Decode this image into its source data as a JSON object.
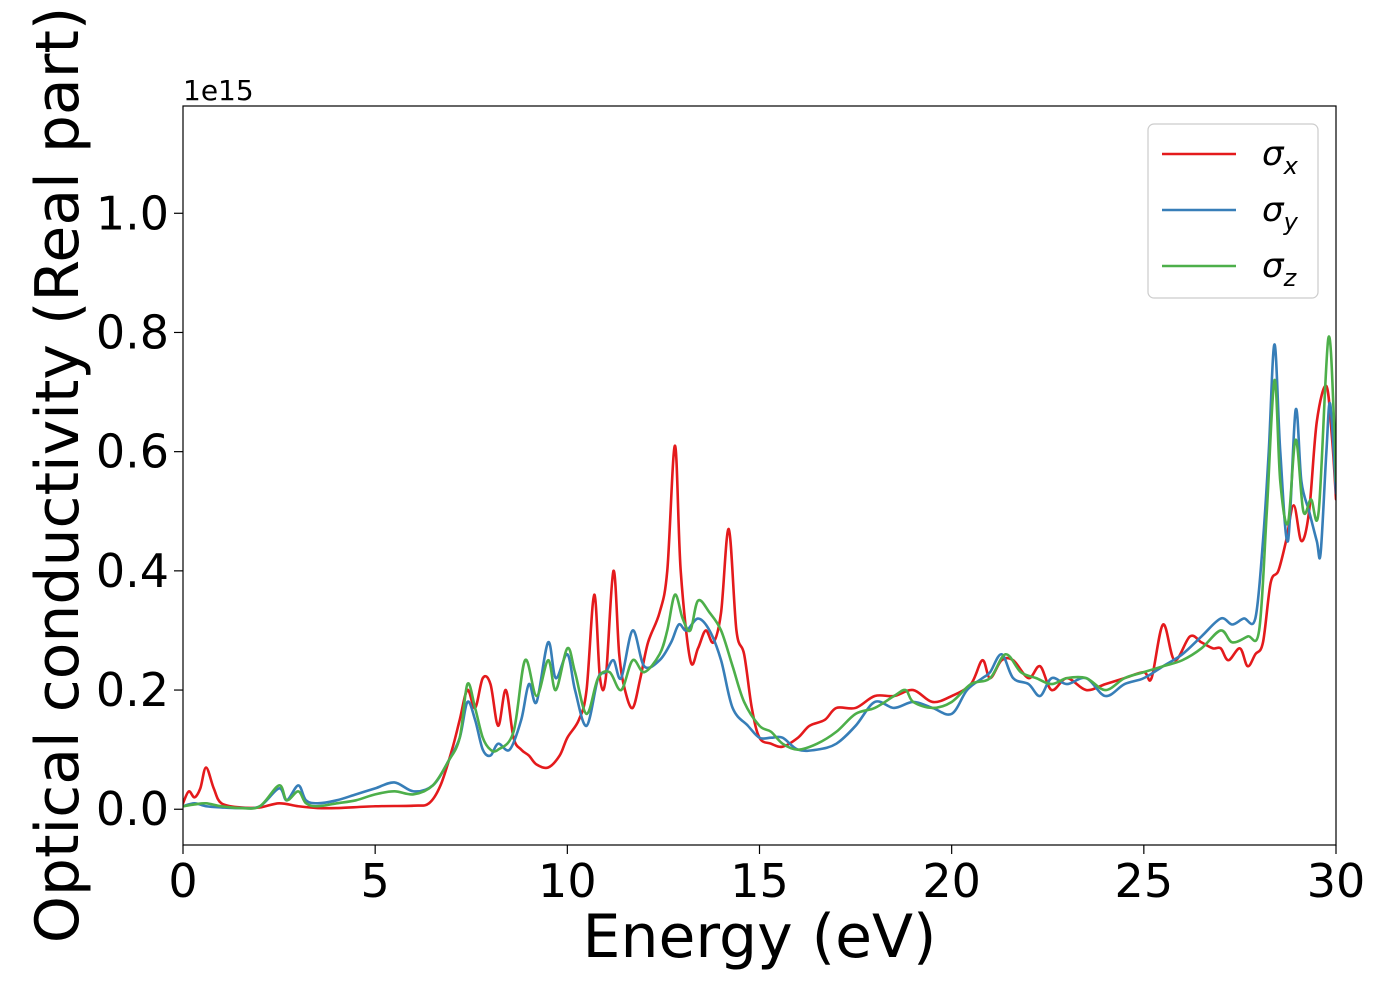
{
  "chart_data": {
    "type": "line",
    "xlabel": "Energy (eV)",
    "ylabel": "Optical conductivity (Real part)",
    "y_offset_label": "1e15",
    "xlim": [
      0,
      30
    ],
    "ylim": [
      -0.06,
      1.18
    ],
    "x_ticks": [
      0,
      5,
      10,
      15,
      20,
      25,
      30
    ],
    "x_tick_labels": [
      "0",
      "5",
      "10",
      "15",
      "20",
      "25",
      "30"
    ],
    "y_ticks": [
      0.0,
      0.2,
      0.4,
      0.6,
      0.8,
      1.0
    ],
    "y_tick_labels": [
      "0.0",
      "0.2",
      "0.4",
      "0.6",
      "0.8",
      "1.0"
    ],
    "grid": false,
    "legend_position": "top-right",
    "series": [
      {
        "name": "σx",
        "legend_symbol": "σ",
        "legend_subscript": "x",
        "color": "#e41a1c",
        "points": [
          [
            0,
            0.01
          ],
          [
            0.15,
            0.03
          ],
          [
            0.3,
            0.02
          ],
          [
            0.45,
            0.035
          ],
          [
            0.6,
            0.07
          ],
          [
            0.8,
            0.035
          ],
          [
            1.0,
            0.01
          ],
          [
            1.5,
            0.003
          ],
          [
            2.0,
            0.003
          ],
          [
            2.5,
            0.01
          ],
          [
            3.0,
            0.005
          ],
          [
            3.5,
            0.002
          ],
          [
            4.0,
            0.002
          ],
          [
            5.0,
            0.005
          ],
          [
            6.0,
            0.006
          ],
          [
            6.4,
            0.01
          ],
          [
            6.7,
            0.04
          ],
          [
            7.0,
            0.1
          ],
          [
            7.2,
            0.15
          ],
          [
            7.4,
            0.2
          ],
          [
            7.6,
            0.17
          ],
          [
            7.8,
            0.22
          ],
          [
            8.0,
            0.21
          ],
          [
            8.2,
            0.14
          ],
          [
            8.4,
            0.2
          ],
          [
            8.6,
            0.12
          ],
          [
            8.8,
            0.1
          ],
          [
            9.0,
            0.09
          ],
          [
            9.2,
            0.075
          ],
          [
            9.5,
            0.07
          ],
          [
            9.8,
            0.09
          ],
          [
            10.0,
            0.12
          ],
          [
            10.3,
            0.15
          ],
          [
            10.5,
            0.2
          ],
          [
            10.7,
            0.36
          ],
          [
            10.85,
            0.22
          ],
          [
            11.0,
            0.22
          ],
          [
            11.2,
            0.4
          ],
          [
            11.35,
            0.26
          ],
          [
            11.5,
            0.2
          ],
          [
            11.7,
            0.17
          ],
          [
            11.9,
            0.22
          ],
          [
            12.1,
            0.28
          ],
          [
            12.4,
            0.33
          ],
          [
            12.6,
            0.4
          ],
          [
            12.8,
            0.61
          ],
          [
            12.95,
            0.4
          ],
          [
            13.2,
            0.25
          ],
          [
            13.4,
            0.27
          ],
          [
            13.6,
            0.3
          ],
          [
            13.8,
            0.28
          ],
          [
            14.0,
            0.33
          ],
          [
            14.2,
            0.47
          ],
          [
            14.4,
            0.3
          ],
          [
            14.6,
            0.26
          ],
          [
            14.8,
            0.17
          ],
          [
            15.0,
            0.12
          ],
          [
            15.3,
            0.11
          ],
          [
            15.6,
            0.105
          ],
          [
            16.0,
            0.12
          ],
          [
            16.3,
            0.14
          ],
          [
            16.7,
            0.15
          ],
          [
            17.0,
            0.17
          ],
          [
            17.5,
            0.17
          ],
          [
            18.0,
            0.19
          ],
          [
            18.5,
            0.19
          ],
          [
            19.0,
            0.2
          ],
          [
            19.5,
            0.18
          ],
          [
            20.0,
            0.19
          ],
          [
            20.5,
            0.21
          ],
          [
            20.8,
            0.25
          ],
          [
            21.0,
            0.22
          ],
          [
            21.3,
            0.25
          ],
          [
            21.6,
            0.25
          ],
          [
            22.0,
            0.22
          ],
          [
            22.3,
            0.24
          ],
          [
            22.6,
            0.2
          ],
          [
            23.0,
            0.22
          ],
          [
            23.5,
            0.2
          ],
          [
            24.0,
            0.21
          ],
          [
            24.5,
            0.22
          ],
          [
            25.0,
            0.23
          ],
          [
            25.2,
            0.22
          ],
          [
            25.5,
            0.31
          ],
          [
            25.8,
            0.25
          ],
          [
            26.2,
            0.29
          ],
          [
            26.5,
            0.28
          ],
          [
            26.8,
            0.27
          ],
          [
            27.0,
            0.27
          ],
          [
            27.2,
            0.25
          ],
          [
            27.5,
            0.27
          ],
          [
            27.7,
            0.24
          ],
          [
            27.9,
            0.26
          ],
          [
            28.1,
            0.28
          ],
          [
            28.3,
            0.38
          ],
          [
            28.5,
            0.4
          ],
          [
            28.7,
            0.45
          ],
          [
            28.9,
            0.51
          ],
          [
            29.1,
            0.45
          ],
          [
            29.3,
            0.5
          ],
          [
            29.5,
            0.65
          ],
          [
            29.75,
            0.71
          ],
          [
            29.9,
            0.62
          ],
          [
            30.0,
            0.52
          ]
        ]
      },
      {
        "name": "σy",
        "legend_symbol": "σ",
        "legend_subscript": "y",
        "color": "#377eb8",
        "points": [
          [
            0,
            0.005
          ],
          [
            0.3,
            0.01
          ],
          [
            0.6,
            0.005
          ],
          [
            1.0,
            0.003
          ],
          [
            1.5,
            0.002
          ],
          [
            2.0,
            0.005
          ],
          [
            2.5,
            0.035
          ],
          [
            2.7,
            0.015
          ],
          [
            3.0,
            0.04
          ],
          [
            3.2,
            0.015
          ],
          [
            3.5,
            0.01
          ],
          [
            4.0,
            0.015
          ],
          [
            4.5,
            0.025
          ],
          [
            5.0,
            0.035
          ],
          [
            5.5,
            0.045
          ],
          [
            6.0,
            0.03
          ],
          [
            6.5,
            0.04
          ],
          [
            6.9,
            0.08
          ],
          [
            7.2,
            0.12
          ],
          [
            7.4,
            0.18
          ],
          [
            7.6,
            0.15
          ],
          [
            7.8,
            0.1
          ],
          [
            8.0,
            0.09
          ],
          [
            8.2,
            0.11
          ],
          [
            8.5,
            0.1
          ],
          [
            8.8,
            0.15
          ],
          [
            9.0,
            0.21
          ],
          [
            9.2,
            0.18
          ],
          [
            9.5,
            0.28
          ],
          [
            9.7,
            0.22
          ],
          [
            10.0,
            0.26
          ],
          [
            10.2,
            0.2
          ],
          [
            10.5,
            0.14
          ],
          [
            10.8,
            0.22
          ],
          [
            11.0,
            0.23
          ],
          [
            11.2,
            0.25
          ],
          [
            11.4,
            0.22
          ],
          [
            11.7,
            0.3
          ],
          [
            12.0,
            0.24
          ],
          [
            12.4,
            0.25
          ],
          [
            12.7,
            0.28
          ],
          [
            12.9,
            0.31
          ],
          [
            13.1,
            0.3
          ],
          [
            13.4,
            0.32
          ],
          [
            13.7,
            0.3
          ],
          [
            14.0,
            0.25
          ],
          [
            14.3,
            0.17
          ],
          [
            14.7,
            0.14
          ],
          [
            15.0,
            0.12
          ],
          [
            15.3,
            0.12
          ],
          [
            15.6,
            0.12
          ],
          [
            16.0,
            0.1
          ],
          [
            16.5,
            0.1
          ],
          [
            17.0,
            0.11
          ],
          [
            17.5,
            0.14
          ],
          [
            18.0,
            0.18
          ],
          [
            18.5,
            0.17
          ],
          [
            19.0,
            0.18
          ],
          [
            19.5,
            0.17
          ],
          [
            20.0,
            0.16
          ],
          [
            20.4,
            0.2
          ],
          [
            20.8,
            0.22
          ],
          [
            21.0,
            0.23
          ],
          [
            21.3,
            0.26
          ],
          [
            21.6,
            0.22
          ],
          [
            22.0,
            0.21
          ],
          [
            22.3,
            0.19
          ],
          [
            22.6,
            0.22
          ],
          [
            23.0,
            0.21
          ],
          [
            23.5,
            0.22
          ],
          [
            24.0,
            0.19
          ],
          [
            24.5,
            0.21
          ],
          [
            25.0,
            0.22
          ],
          [
            25.5,
            0.24
          ],
          [
            26.0,
            0.26
          ],
          [
            26.5,
            0.29
          ],
          [
            27.0,
            0.32
          ],
          [
            27.3,
            0.31
          ],
          [
            27.6,
            0.32
          ],
          [
            27.9,
            0.32
          ],
          [
            28.1,
            0.45
          ],
          [
            28.25,
            0.6
          ],
          [
            28.4,
            0.78
          ],
          [
            28.55,
            0.6
          ],
          [
            28.75,
            0.45
          ],
          [
            28.95,
            0.67
          ],
          [
            29.1,
            0.55
          ],
          [
            29.3,
            0.5
          ],
          [
            29.5,
            0.45
          ],
          [
            29.6,
            0.43
          ],
          [
            29.75,
            0.6
          ],
          [
            29.85,
            0.68
          ],
          [
            30.0,
            0.53
          ]
        ]
      },
      {
        "name": "σz",
        "legend_symbol": "σ",
        "legend_subscript": "z",
        "color": "#4daf4a",
        "points": [
          [
            0,
            0.005
          ],
          [
            0.3,
            0.008
          ],
          [
            0.6,
            0.01
          ],
          [
            1.0,
            0.005
          ],
          [
            1.5,
            0.002
          ],
          [
            2.0,
            0.005
          ],
          [
            2.5,
            0.04
          ],
          [
            2.7,
            0.015
          ],
          [
            3.0,
            0.03
          ],
          [
            3.2,
            0.01
          ],
          [
            3.5,
            0.005
          ],
          [
            4.0,
            0.01
          ],
          [
            4.5,
            0.015
          ],
          [
            5.0,
            0.025
          ],
          [
            5.5,
            0.03
          ],
          [
            6.0,
            0.025
          ],
          [
            6.5,
            0.04
          ],
          [
            6.9,
            0.08
          ],
          [
            7.2,
            0.12
          ],
          [
            7.4,
            0.21
          ],
          [
            7.6,
            0.17
          ],
          [
            7.8,
            0.12
          ],
          [
            8.0,
            0.1
          ],
          [
            8.2,
            0.1
          ],
          [
            8.6,
            0.13
          ],
          [
            8.9,
            0.25
          ],
          [
            9.2,
            0.19
          ],
          [
            9.5,
            0.25
          ],
          [
            9.7,
            0.2
          ],
          [
            10.0,
            0.27
          ],
          [
            10.2,
            0.23
          ],
          [
            10.5,
            0.16
          ],
          [
            10.8,
            0.22
          ],
          [
            11.1,
            0.23
          ],
          [
            11.4,
            0.2
          ],
          [
            11.7,
            0.25
          ],
          [
            12.0,
            0.23
          ],
          [
            12.4,
            0.26
          ],
          [
            12.6,
            0.3
          ],
          [
            12.8,
            0.36
          ],
          [
            13.0,
            0.32
          ],
          [
            13.2,
            0.3
          ],
          [
            13.4,
            0.35
          ],
          [
            13.7,
            0.33
          ],
          [
            14.0,
            0.3
          ],
          [
            14.3,
            0.24
          ],
          [
            14.6,
            0.18
          ],
          [
            15.0,
            0.14
          ],
          [
            15.3,
            0.13
          ],
          [
            15.6,
            0.11
          ],
          [
            16.0,
            0.1
          ],
          [
            16.5,
            0.11
          ],
          [
            17.0,
            0.13
          ],
          [
            17.5,
            0.16
          ],
          [
            18.0,
            0.17
          ],
          [
            18.5,
            0.19
          ],
          [
            18.8,
            0.2
          ],
          [
            19.0,
            0.18
          ],
          [
            19.5,
            0.17
          ],
          [
            20.0,
            0.18
          ],
          [
            20.5,
            0.21
          ],
          [
            21.0,
            0.22
          ],
          [
            21.4,
            0.26
          ],
          [
            21.8,
            0.23
          ],
          [
            22.2,
            0.22
          ],
          [
            22.6,
            0.21
          ],
          [
            23.0,
            0.22
          ],
          [
            23.5,
            0.22
          ],
          [
            24.0,
            0.2
          ],
          [
            24.5,
            0.22
          ],
          [
            25.0,
            0.23
          ],
          [
            25.5,
            0.24
          ],
          [
            26.0,
            0.25
          ],
          [
            26.5,
            0.27
          ],
          [
            27.0,
            0.3
          ],
          [
            27.3,
            0.28
          ],
          [
            27.7,
            0.29
          ],
          [
            28.0,
            0.3
          ],
          [
            28.2,
            0.5
          ],
          [
            28.4,
            0.72
          ],
          [
            28.55,
            0.55
          ],
          [
            28.75,
            0.48
          ],
          [
            28.95,
            0.62
          ],
          [
            29.15,
            0.5
          ],
          [
            29.35,
            0.52
          ],
          [
            29.55,
            0.5
          ],
          [
            29.8,
            0.79
          ],
          [
            29.95,
            0.65
          ],
          [
            30.0,
            0.55
          ]
        ]
      }
    ]
  }
}
